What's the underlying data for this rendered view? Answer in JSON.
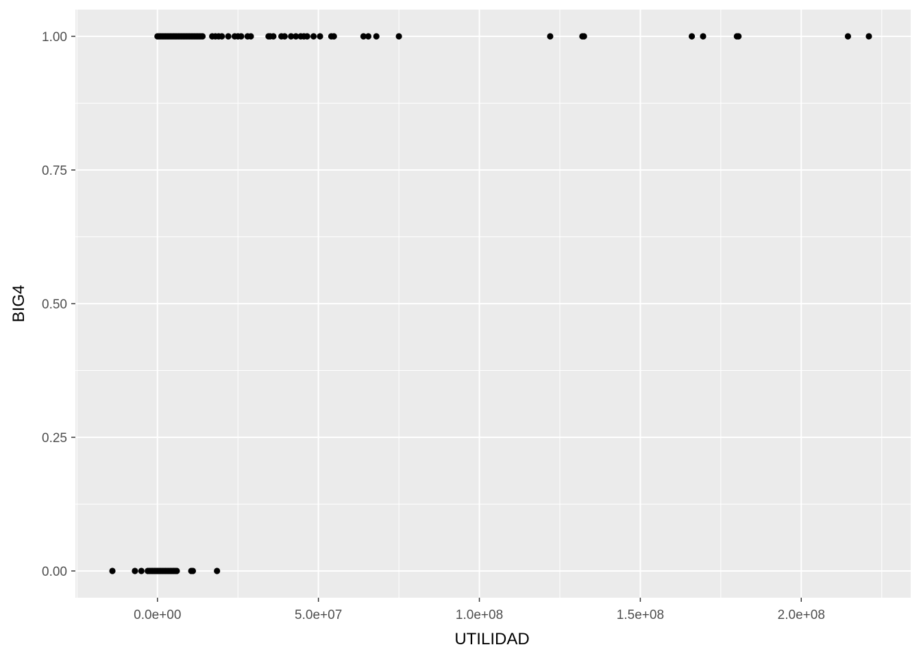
{
  "chart_data": {
    "type": "scatter",
    "title": "",
    "xlabel": "UTILIDAD",
    "ylabel": "BIG4",
    "xlim": [
      -25500000,
      234000000
    ],
    "ylim": [
      -0.05,
      1.05
    ],
    "x_ticks": [
      0,
      50000000,
      100000000,
      150000000,
      200000000
    ],
    "x_tick_labels": [
      "0.0e+00",
      "5.0e+07",
      "1.0e+08",
      "1.5e+08",
      "2.0e+08"
    ],
    "y_ticks": [
      0,
      0.25,
      0.5,
      0.75,
      1
    ],
    "y_tick_labels": [
      "0.00",
      "0.25",
      "0.50",
      "0.75",
      "1.00"
    ],
    "grid": true,
    "legend": "none",
    "colors": {
      "panel": "#ebebeb",
      "grid": "#ffffff",
      "point": "#000000"
    },
    "series": [
      {
        "values_y": 1,
        "x": [
          0,
          500000,
          1000000,
          1500000,
          2000000,
          2500000,
          3000000,
          3500000,
          4000000,
          4500000,
          5000000,
          5500000,
          6000000,
          6500000,
          7000000,
          7500000,
          8000000,
          8500000,
          9000000,
          9500000,
          10000000,
          10500000,
          11000000,
          11500000,
          12000000,
          12500000,
          13000000,
          13500000,
          14000000,
          17000000,
          18000000,
          19000000,
          20000000,
          22000000,
          24000000,
          25000000,
          26000000,
          28000000,
          29000000,
          34500000,
          35000000,
          36000000,
          38500000,
          39500000,
          41500000,
          43000000,
          44500000,
          45500000,
          46500000,
          48500000,
          50500000,
          54000000,
          54800000,
          64000000,
          65500000,
          68000000,
          75000000,
          122000000,
          132000000,
          132500000,
          166000000,
          169500000,
          180000000,
          180500000,
          214500000,
          221000000
        ]
      },
      {
        "values_y": 0,
        "x": [
          -14000000,
          -7000000,
          -5000000,
          -3000000,
          -2500000,
          -2000000,
          -1500000,
          -1000000,
          -500000,
          0,
          500000,
          1000000,
          1500000,
          2000000,
          2500000,
          3000000,
          3500000,
          4000000,
          4500000,
          5000000,
          5500000,
          6000000,
          10500000,
          11000000,
          18500000
        ]
      }
    ]
  }
}
